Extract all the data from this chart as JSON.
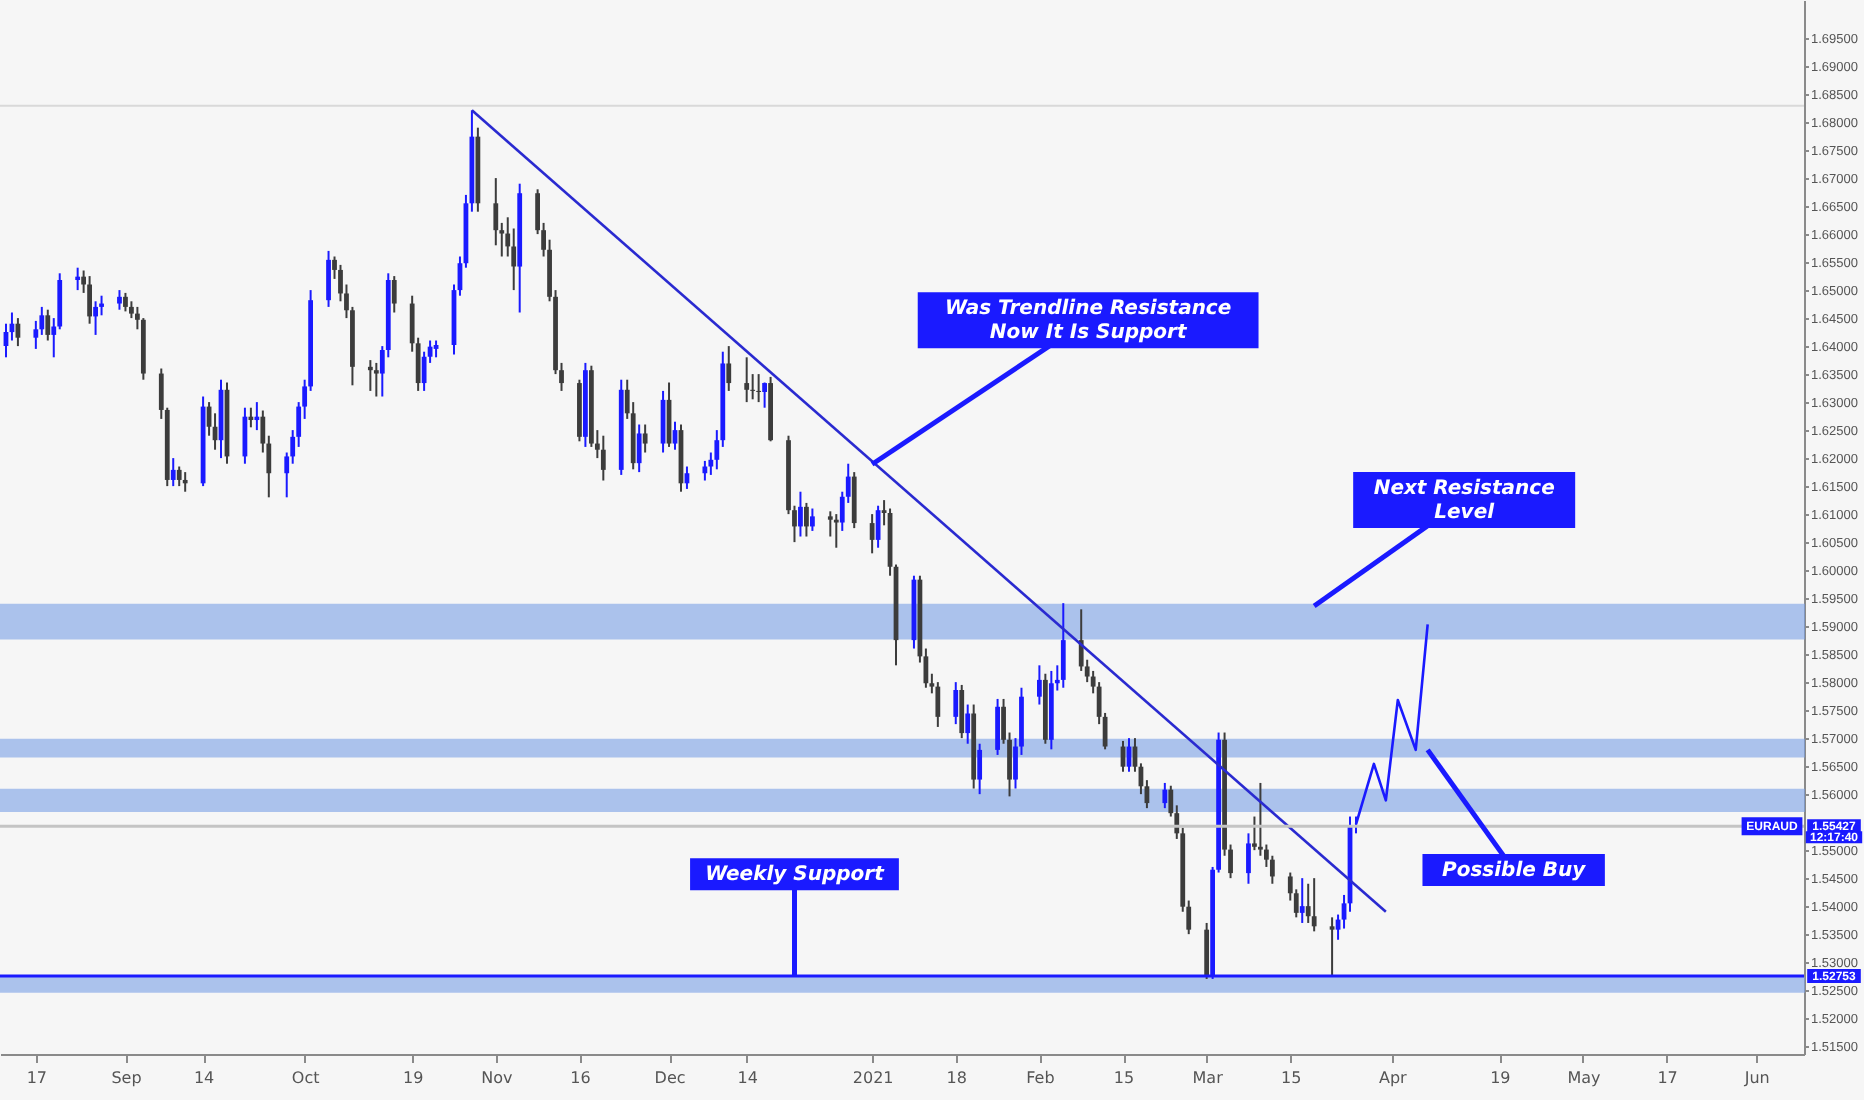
{
  "chart_data": {
    "type": "candlestick",
    "x": [
      "2020-08-12",
      "2020-08-13",
      "2020-08-14",
      "2020-08-17",
      "2020-08-18",
      "2020-08-19",
      "2020-08-20",
      "2020-08-21",
      "2020-08-24",
      "2020-08-25",
      "2020-08-26",
      "2020-08-27",
      "2020-08-28",
      "2020-08-31",
      "2020-09-01",
      "2020-09-02",
      "2020-09-03",
      "2020-09-04",
      "2020-09-07",
      "2020-09-08",
      "2020-09-09",
      "2020-09-10",
      "2020-09-11",
      "2020-09-14",
      "2020-09-15",
      "2020-09-16",
      "2020-09-17",
      "2020-09-18",
      "2020-09-21",
      "2020-09-22",
      "2020-09-23",
      "2020-09-24",
      "2020-09-25",
      "2020-09-28",
      "2020-09-29",
      "2020-09-30",
      "2020-10-01",
      "2020-10-02",
      "2020-10-05",
      "2020-10-06",
      "2020-10-07",
      "2020-10-08",
      "2020-10-09",
      "2020-10-12",
      "2020-10-13",
      "2020-10-14",
      "2020-10-15",
      "2020-10-16",
      "2020-10-19",
      "2020-10-20",
      "2020-10-21",
      "2020-10-22",
      "2020-10-23",
      "2020-10-26",
      "2020-10-27",
      "2020-10-28",
      "2020-10-29",
      "2020-10-30",
      "2020-11-02",
      "2020-11-03",
      "2020-11-04",
      "2020-11-05",
      "2020-11-06",
      "2020-11-09",
      "2020-11-10",
      "2020-11-11",
      "2020-11-12",
      "2020-11-13",
      "2020-11-16",
      "2020-11-17",
      "2020-11-18",
      "2020-11-19",
      "2020-11-20",
      "2020-11-23",
      "2020-11-24",
      "2020-11-25",
      "2020-11-26",
      "2020-11-27",
      "2020-11-30",
      "2020-12-01",
      "2020-12-02",
      "2020-12-03",
      "2020-12-04",
      "2020-12-07",
      "2020-12-08",
      "2020-12-09",
      "2020-12-10",
      "2020-12-11",
      "2020-12-14",
      "2020-12-15",
      "2020-12-16",
      "2020-12-17",
      "2020-12-18",
      "2020-12-21",
      "2020-12-22",
      "2020-12-23",
      "2020-12-24",
      "2020-12-25",
      "2020-12-28",
      "2020-12-29",
      "2020-12-30",
      "2020-12-31",
      "2021-01-01",
      "2021-01-04",
      "2021-01-05",
      "2021-01-06",
      "2021-01-07",
      "2021-01-08",
      "2021-01-11",
      "2021-01-12",
      "2021-01-13",
      "2021-01-14",
      "2021-01-15",
      "2021-01-18",
      "2021-01-19",
      "2021-01-20",
      "2021-01-21",
      "2021-01-22",
      "2021-01-25",
      "2021-01-26",
      "2021-01-27",
      "2021-01-28",
      "2021-01-29",
      "2021-02-01",
      "2021-02-02",
      "2021-02-03",
      "2021-02-04",
      "2021-02-05",
      "2021-02-08",
      "2021-02-09",
      "2021-02-10",
      "2021-02-11",
      "2021-02-12",
      "2021-02-15",
      "2021-02-16",
      "2021-02-17",
      "2021-02-18",
      "2021-02-19",
      "2021-02-22",
      "2021-02-23",
      "2021-02-24",
      "2021-02-25",
      "2021-02-26",
      "2021-03-01",
      "2021-03-02",
      "2021-03-03",
      "2021-03-04",
      "2021-03-05",
      "2021-03-08",
      "2021-03-09",
      "2021-03-10",
      "2021-03-11",
      "2021-03-12",
      "2021-03-15",
      "2021-03-16",
      "2021-03-17",
      "2021-03-18",
      "2021-03-19",
      "2021-03-22",
      "2021-03-23",
      "2021-03-24",
      "2021-03-25",
      "2021-03-26"
    ],
    "ohlc": [
      [
        1.64,
        1.644,
        1.638,
        1.6425
      ],
      [
        1.6425,
        1.646,
        1.641,
        1.644
      ],
      [
        1.644,
        1.645,
        1.64,
        1.6415
      ],
      [
        1.6415,
        1.6445,
        1.6395,
        1.643
      ],
      [
        1.643,
        1.647,
        1.642,
        1.6455
      ],
      [
        1.6455,
        1.6465,
        1.641,
        1.642
      ],
      [
        1.642,
        1.645,
        1.638,
        1.6435
      ],
      [
        1.6435,
        1.653,
        1.643,
        1.6518
      ],
      [
        1.6518,
        1.654,
        1.65,
        1.6524
      ],
      [
        1.6524,
        1.6535,
        1.6495,
        1.651
      ],
      [
        1.651,
        1.6525,
        1.644,
        1.6453
      ],
      [
        1.6453,
        1.648,
        1.642,
        1.647
      ],
      [
        1.647,
        1.649,
        1.6455,
        1.6476
      ],
      [
        1.6476,
        1.65,
        1.6465,
        1.6488
      ],
      [
        1.6488,
        1.6495,
        1.6462,
        1.647
      ],
      [
        1.647,
        1.648,
        1.645,
        1.6458
      ],
      [
        1.6458,
        1.647,
        1.643,
        1.6447
      ],
      [
        1.6447,
        1.645,
        1.634,
        1.6351
      ],
      [
        1.6351,
        1.636,
        1.627,
        1.6286
      ],
      [
        1.6286,
        1.629,
        1.615,
        1.6161
      ],
      [
        1.6161,
        1.62,
        1.615,
        1.6179
      ],
      [
        1.6179,
        1.6185,
        1.615,
        1.6161
      ],
      [
        1.6161,
        1.6175,
        1.614,
        1.6155
      ],
      [
        1.6155,
        1.631,
        1.615,
        1.6292
      ],
      [
        1.6292,
        1.63,
        1.624,
        1.6256
      ],
      [
        1.6256,
        1.628,
        1.6215,
        1.6232
      ],
      [
        1.6232,
        1.634,
        1.62,
        1.6322
      ],
      [
        1.6322,
        1.6335,
        1.619,
        1.6203
      ],
      [
        1.6203,
        1.629,
        1.619,
        1.6274
      ],
      [
        1.6274,
        1.629,
        1.6255,
        1.6268
      ],
      [
        1.6268,
        1.63,
        1.625,
        1.6274
      ],
      [
        1.6274,
        1.6285,
        1.621,
        1.6226
      ],
      [
        1.6226,
        1.624,
        1.613,
        1.6173
      ],
      [
        1.6173,
        1.621,
        1.613,
        1.6203
      ],
      [
        1.6203,
        1.625,
        1.619,
        1.6238
      ],
      [
        1.6238,
        1.63,
        1.622,
        1.6292
      ],
      [
        1.6292,
        1.634,
        1.627,
        1.6328
      ],
      [
        1.6328,
        1.65,
        1.632,
        1.6482
      ],
      [
        1.6482,
        1.657,
        1.647,
        1.6554
      ],
      [
        1.6554,
        1.656,
        1.652,
        1.6536
      ],
      [
        1.6536,
        1.6545,
        1.648,
        1.6494
      ],
      [
        1.6494,
        1.651,
        1.645,
        1.6464
      ],
      [
        1.6464,
        1.647,
        1.633,
        1.6363
      ],
      [
        1.6363,
        1.6375,
        1.632,
        1.6357
      ],
      [
        1.6357,
        1.637,
        1.631,
        1.6351
      ],
      [
        1.6351,
        1.64,
        1.631,
        1.6393
      ],
      [
        1.6393,
        1.653,
        1.638,
        1.6518
      ],
      [
        1.6518,
        1.6525,
        1.646,
        1.6476
      ],
      [
        1.6476,
        1.649,
        1.639,
        1.6405
      ],
      [
        1.6405,
        1.6415,
        1.632,
        1.6334
      ],
      [
        1.6334,
        1.639,
        1.632,
        1.6381
      ],
      [
        1.6381,
        1.641,
        1.637,
        1.6399
      ],
      [
        1.6395,
        1.641,
        1.638,
        1.6402
      ],
      [
        1.6402,
        1.651,
        1.6385,
        1.65
      ],
      [
        1.65,
        1.656,
        1.649,
        1.6548
      ],
      [
        1.6548,
        1.667,
        1.654,
        1.6655
      ],
      [
        1.6655,
        1.6821,
        1.664,
        1.6774
      ],
      [
        1.6774,
        1.679,
        1.664,
        1.6655
      ],
      [
        1.6655,
        1.67,
        1.658,
        1.6607
      ],
      [
        1.6607,
        1.662,
        1.656,
        1.6601
      ],
      [
        1.6601,
        1.663,
        1.656,
        1.6578
      ],
      [
        1.6578,
        1.661,
        1.65,
        1.6542
      ],
      [
        1.6542,
        1.669,
        1.646,
        1.6673
      ],
      [
        1.6673,
        1.668,
        1.66,
        1.6607
      ],
      [
        1.6607,
        1.662,
        1.656,
        1.6572
      ],
      [
        1.6572,
        1.659,
        1.648,
        1.6488
      ],
      [
        1.6488,
        1.65,
        1.635,
        1.6357
      ],
      [
        1.6357,
        1.637,
        1.632,
        1.6334
      ],
      [
        1.6334,
        1.634,
        1.623,
        1.6238
      ],
      [
        1.6238,
        1.637,
        1.622,
        1.6357
      ],
      [
        1.6357,
        1.6365,
        1.622,
        1.6226
      ],
      [
        1.6226,
        1.625,
        1.62,
        1.6215
      ],
      [
        1.6215,
        1.624,
        1.616,
        1.6179
      ],
      [
        1.6179,
        1.634,
        1.617,
        1.6322
      ],
      [
        1.6322,
        1.634,
        1.627,
        1.628
      ],
      [
        1.628,
        1.63,
        1.618,
        1.6191
      ],
      [
        1.6191,
        1.626,
        1.6175,
        1.6244
      ],
      [
        1.6244,
        1.626,
        1.621,
        1.6226
      ],
      [
        1.6226,
        1.632,
        1.621,
        1.6304
      ],
      [
        1.6304,
        1.6335,
        1.622,
        1.6226
      ],
      [
        1.6226,
        1.6265,
        1.6215,
        1.625
      ],
      [
        1.625,
        1.626,
        1.614,
        1.6155
      ],
      [
        1.6155,
        1.6185,
        1.6145,
        1.6173
      ],
      [
        1.6173,
        1.6195,
        1.616,
        1.6185
      ],
      [
        1.6185,
        1.621,
        1.617,
        1.6197
      ],
      [
        1.6197,
        1.625,
        1.618,
        1.6232
      ],
      [
        1.6232,
        1.639,
        1.622,
        1.6369
      ],
      [
        1.6369,
        1.64,
        1.632,
        1.6334
      ],
      [
        1.6334,
        1.638,
        1.63,
        1.6322
      ],
      [
        1.6322,
        1.635,
        1.6305,
        1.632
      ],
      [
        1.632,
        1.635,
        1.63,
        1.6318
      ],
      [
        1.6318,
        1.6335,
        1.629,
        1.6334
      ],
      [
        1.6334,
        1.6345,
        1.623,
        1.6232
      ],
      [
        1.6232,
        1.624,
        1.61,
        1.6107
      ],
      [
        1.6107,
        1.6115,
        1.605,
        1.6078
      ],
      [
        1.6078,
        1.614,
        1.606,
        1.6113
      ],
      [
        1.6113,
        1.612,
        1.606,
        1.6078
      ],
      [
        1.6078,
        1.611,
        1.607,
        1.6096
      ],
      [
        1.6096,
        1.6105,
        1.606,
        1.609
      ],
      [
        1.609,
        1.61,
        1.604,
        1.6085
      ],
      [
        1.6085,
        1.614,
        1.607,
        1.6131
      ],
      [
        1.6131,
        1.619,
        1.612,
        1.6167
      ],
      [
        1.6167,
        1.6175,
        1.6075,
        1.6084
      ],
      [
        1.6084,
        1.61,
        1.603,
        1.6054
      ],
      [
        1.6054,
        1.6115,
        1.604,
        1.6107
      ],
      [
        1.6107,
        1.6125,
        1.608,
        1.6102
      ],
      [
        1.6102,
        1.611,
        1.599,
        1.6006
      ],
      [
        1.6006,
        1.601,
        1.583,
        1.5875
      ],
      [
        1.5875,
        1.599,
        1.586,
        1.5983
      ],
      [
        1.5983,
        1.599,
        1.5835,
        1.5846
      ],
      [
        1.5846,
        1.586,
        1.579,
        1.5798
      ],
      [
        1.5798,
        1.5815,
        1.578,
        1.5792
      ],
      [
        1.5792,
        1.58,
        1.572,
        1.5738
      ],
      [
        1.5738,
        1.58,
        1.5725,
        1.5786
      ],
      [
        1.5786,
        1.5795,
        1.57,
        1.5709
      ],
      [
        1.5709,
        1.576,
        1.569,
        1.5744
      ],
      [
        1.5744,
        1.576,
        1.561,
        1.5626
      ],
      [
        1.5626,
        1.569,
        1.56,
        1.5679
      ],
      [
        1.5679,
        1.577,
        1.567,
        1.5756
      ],
      [
        1.5756,
        1.577,
        1.569,
        1.5697
      ],
      [
        1.5697,
        1.571,
        1.5596,
        1.5626
      ],
      [
        1.5626,
        1.57,
        1.561,
        1.5685
      ],
      [
        1.5685,
        1.579,
        1.567,
        1.5774
      ],
      [
        1.5774,
        1.583,
        1.576,
        1.5804
      ],
      [
        1.5804,
        1.5815,
        1.569,
        1.5697
      ],
      [
        1.5697,
        1.582,
        1.568,
        1.5798
      ],
      [
        1.5798,
        1.583,
        1.5785,
        1.5804
      ],
      [
        1.5804,
        1.5941,
        1.579,
        1.5875
      ],
      [
        1.5875,
        1.593,
        1.582,
        1.5828
      ],
      [
        1.5828,
        1.584,
        1.58,
        1.581
      ],
      [
        1.581,
        1.582,
        1.578,
        1.5792
      ],
      [
        1.5792,
        1.58,
        1.5725,
        1.5738
      ],
      [
        1.5738,
        1.5745,
        1.568,
        1.5685
      ],
      [
        1.5685,
        1.5695,
        1.564,
        1.5649
      ],
      [
        1.5649,
        1.57,
        1.564,
        1.5685
      ],
      [
        1.5685,
        1.57,
        1.564,
        1.5649
      ],
      [
        1.5649,
        1.5655,
        1.56,
        1.5614
      ],
      [
        1.5614,
        1.5625,
        1.5575,
        1.5584
      ],
      [
        1.5584,
        1.562,
        1.5575,
        1.5608
      ],
      [
        1.5608,
        1.5615,
        1.556,
        1.5566
      ],
      [
        1.5566,
        1.558,
        1.552,
        1.553
      ],
      [
        1.553,
        1.554,
        1.539,
        1.5399
      ],
      [
        1.5399,
        1.541,
        1.535,
        1.5358
      ],
      [
        1.5358,
        1.537,
        1.527,
        1.5274
      ],
      [
        1.5274,
        1.547,
        1.527,
        1.5465
      ],
      [
        1.5465,
        1.571,
        1.546,
        1.5697
      ],
      [
        1.5697,
        1.571,
        1.549,
        1.5501
      ],
      [
        1.5501,
        1.551,
        1.545,
        1.5459
      ],
      [
        1.5459,
        1.553,
        1.544,
        1.5512
      ],
      [
        1.5512,
        1.556,
        1.55,
        1.5506
      ],
      [
        1.5506,
        1.562,
        1.549,
        1.5501
      ],
      [
        1.5501,
        1.551,
        1.547,
        1.5483
      ],
      [
        1.5483,
        1.549,
        1.544,
        1.5453
      ],
      [
        1.5453,
        1.546,
        1.541,
        1.5423
      ],
      [
        1.5423,
        1.543,
        1.538,
        1.5388
      ],
      [
        1.5388,
        1.545,
        1.537,
        1.54
      ],
      [
        1.54,
        1.544,
        1.537,
        1.5382
      ],
      [
        1.5382,
        1.545,
        1.5355,
        1.5364
      ],
      [
        1.5364,
        1.538,
        1.5274,
        1.5358
      ],
      [
        1.5358,
        1.5385,
        1.534,
        1.5376
      ],
      [
        1.5376,
        1.542,
        1.536,
        1.5405
      ],
      [
        1.5405,
        1.556,
        1.539,
        1.5542
      ],
      [
        1.5542,
        1.556,
        1.553,
        1.5543
      ]
    ],
    "colors": [
      "#1a1aff",
      "#1a1aff",
      "#3c3c3c",
      "#1a1aff",
      "#1a1aff",
      "#3c3c3c",
      "#1a1aff",
      "#1a1aff",
      "#1a1aff",
      "#3c3c3c",
      "#3c3c3c",
      "#1a1aff",
      "#1a1aff",
      "#1a1aff",
      "#3c3c3c",
      "#3c3c3c",
      "#3c3c3c",
      "#3c3c3c",
      "#3c3c3c",
      "#3c3c3c",
      "#1a1aff",
      "#3c3c3c",
      "#3c3c3c",
      "#1a1aff",
      "#3c3c3c",
      "#3c3c3c",
      "#1a1aff",
      "#3c3c3c",
      "#1a1aff",
      "#3c3c3c",
      "#1a1aff",
      "#3c3c3c",
      "#3c3c3c",
      "#1a1aff",
      "#1a1aff",
      "#1a1aff",
      "#1a1aff",
      "#1a1aff",
      "#1a1aff",
      "#3c3c3c",
      "#3c3c3c",
      "#3c3c3c",
      "#3c3c3c",
      "#3c3c3c",
      "#3c3c3c",
      "#1a1aff",
      "#1a1aff",
      "#3c3c3c",
      "#3c3c3c",
      "#3c3c3c",
      "#1a1aff",
      "#1a1aff",
      "#1a1aff",
      "#1a1aff",
      "#1a1aff",
      "#1a1aff",
      "#1a1aff",
      "#3c3c3c",
      "#3c3c3c",
      "#3c3c3c",
      "#3c3c3c",
      "#3c3c3c",
      "#1a1aff",
      "#3c3c3c",
      "#3c3c3c",
      "#3c3c3c",
      "#3c3c3c",
      "#3c3c3c",
      "#3c3c3c",
      "#1a1aff",
      "#3c3c3c",
      "#3c3c3c",
      "#3c3c3c",
      "#1a1aff",
      "#3c3c3c",
      "#3c3c3c",
      "#1a1aff",
      "#3c3c3c",
      "#1a1aff",
      "#3c3c3c",
      "#1a1aff",
      "#3c3c3c",
      "#1a1aff",
      "#1a1aff",
      "#1a1aff",
      "#1a1aff",
      "#1a1aff",
      "#3c3c3c",
      "#3c3c3c",
      "#3c3c3c",
      "#3c3c3c",
      "#1a1aff",
      "#3c3c3c",
      "#3c3c3c",
      "#3c3c3c",
      "#1a1aff",
      "#3c3c3c",
      "#1a1aff",
      "#3c3c3c",
      "#3c3c3c",
      "#1a1aff",
      "#1a1aff",
      "#3c3c3c",
      "#3c3c3c",
      "#1a1aff",
      "#3c3c3c",
      "#3c3c3c",
      "#3c3c3c",
      "#1a1aff",
      "#3c3c3c",
      "#3c3c3c",
      "#3c3c3c",
      "#3c3c3c",
      "#1a1aff",
      "#3c3c3c",
      "#1a1aff",
      "#3c3c3c",
      "#1a1aff",
      "#1a1aff",
      "#3c3c3c",
      "#3c3c3c",
      "#1a1aff",
      "#1a1aff",
      "#1a1aff",
      "#3c3c3c",
      "#1a1aff",
      "#1a1aff",
      "#1a1aff",
      "#3c3c3c",
      "#3c3c3c",
      "#3c3c3c",
      "#3c3c3c",
      "#3c3c3c",
      "#3c3c3c",
      "#1a1aff",
      "#3c3c3c",
      "#3c3c3c",
      "#3c3c3c",
      "#1a1aff",
      "#3c3c3c",
      "#3c3c3c",
      "#3c3c3c",
      "#3c3c3c",
      "#3c3c3c",
      "#1a1aff",
      "#1a1aff",
      "#3c3c3c",
      "#3c3c3c",
      "#1a1aff",
      "#3c3c3c",
      "#3c3c3c",
      "#3c3c3c",
      "#3c3c3c",
      "#3c3c3c",
      "#3c3c3c",
      "#1a1aff",
      "#3c3c3c",
      "#3c3c3c",
      "#3c3c3c",
      "#1a1aff",
      "#1a1aff",
      "#1a1aff",
      "#1a1aff"
    ],
    "xlim": [
      "2020-08-11",
      "2021-06-09"
    ],
    "xticks": [
      {
        "value": "2020-08-17",
        "label": "17"
      },
      {
        "value": "2020-09-01",
        "label": "Sep"
      },
      {
        "value": "2020-09-14",
        "label": "14"
      },
      {
        "value": "2020-10-01",
        "label": "Oct"
      },
      {
        "value": "2020-10-19",
        "label": "19"
      },
      {
        "value": "2020-11-02",
        "label": "Nov"
      },
      {
        "value": "2020-11-16",
        "label": "16"
      },
      {
        "value": "2020-12-01",
        "label": "Dec"
      },
      {
        "value": "2020-12-14",
        "label": "14"
      },
      {
        "value": "2021-01-04",
        "label": "2021"
      },
      {
        "value": "2021-01-18",
        "label": "18"
      },
      {
        "value": "2021-02-01",
        "label": "Feb"
      },
      {
        "value": "2021-02-15",
        "label": "15"
      },
      {
        "value": "2021-03-01",
        "label": "Mar"
      },
      {
        "value": "2021-03-15",
        "label": "15"
      },
      {
        "value": "2021-04-01",
        "label": "Apr"
      },
      {
        "value": "2021-04-19",
        "label": "19"
      },
      {
        "value": "2021-05-03",
        "label": "May"
      },
      {
        "value": "2021-05-17",
        "label": "17"
      },
      {
        "value": "2021-06-01",
        "label": "Jun"
      }
    ],
    "ylim": [
      1.5136,
      1.7018
    ],
    "yticks": [
      {
        "value": 1.515,
        "label": "1.51500"
      },
      {
        "value": 1.52,
        "label": "1.52000"
      },
      {
        "value": 1.525,
        "label": "1.52500"
      },
      {
        "value": 1.53,
        "label": "1.53000"
      },
      {
        "value": 1.535,
        "label": "1.53500"
      },
      {
        "value": 1.54,
        "label": "1.54000"
      },
      {
        "value": 1.545,
        "label": "1.54500"
      },
      {
        "value": 1.55,
        "label": "1.55000"
      },
      {
        "value": 1.56,
        "label": "1.56000"
      },
      {
        "value": 1.565,
        "label": "1.56500"
      },
      {
        "value": 1.57,
        "label": "1.57000"
      },
      {
        "value": 1.575,
        "label": "1.57500"
      },
      {
        "value": 1.58,
        "label": "1.58000"
      },
      {
        "value": 1.585,
        "label": "1.58500"
      },
      {
        "value": 1.59,
        "label": "1.59000"
      },
      {
        "value": 1.595,
        "label": "1.59500"
      },
      {
        "value": 1.6,
        "label": "1.60000"
      },
      {
        "value": 1.605,
        "label": "1.60500"
      },
      {
        "value": 1.61,
        "label": "1.61000"
      },
      {
        "value": 1.615,
        "label": "1.61500"
      },
      {
        "value": 1.62,
        "label": "1.62000"
      },
      {
        "value": 1.625,
        "label": "1.62500"
      },
      {
        "value": 1.63,
        "label": "1.63000"
      },
      {
        "value": 1.635,
        "label": "1.63500"
      },
      {
        "value": 1.64,
        "label": "1.64000"
      },
      {
        "value": 1.645,
        "label": "1.64500"
      },
      {
        "value": 1.65,
        "label": "1.65000"
      },
      {
        "value": 1.655,
        "label": "1.65500"
      },
      {
        "value": 1.66,
        "label": "1.66000"
      },
      {
        "value": 1.665,
        "label": "1.66500"
      },
      {
        "value": 1.67,
        "label": "1.67000"
      },
      {
        "value": 1.675,
        "label": "1.67500"
      },
      {
        "value": 1.68,
        "label": "1.68000"
      },
      {
        "value": 1.685,
        "label": "1.68500"
      },
      {
        "value": 1.69,
        "label": "1.69000"
      },
      {
        "value": 1.695,
        "label": "1.69500"
      }
    ],
    "series": [
      {
        "type": "line",
        "color": "#2a2ad0",
        "x": [
          "2020-10-29",
          "2021-03-31"
        ],
        "values": [
          1.6821,
          1.539
        ]
      },
      {
        "type": "line",
        "color": "#1a1aff",
        "x": [
          "2021-03-26",
          "2021-03-29",
          "2021-03-31",
          "2021-04-02",
          "2021-04-05",
          "2021-04-07"
        ],
        "values": [
          1.5546,
          1.5654,
          1.5589,
          1.5768,
          1.5679,
          1.5903
        ]
      }
    ],
    "ref_lines": [
      {
        "axis": "y",
        "value": 1.6829,
        "label": null,
        "color": "#d9d9d9"
      },
      {
        "axis": "y",
        "value": 1.55427,
        "label": "1.55427",
        "color": "#c4c4c4"
      },
      {
        "axis": "y",
        "value": 1.52753,
        "label": "1.52753",
        "color": "#1a1aff"
      }
    ],
    "bands": [
      {
        "axis": "y",
        "from": 1.5878,
        "to": 1.5938,
        "color": "#7aa0e6"
      },
      {
        "axis": "y",
        "from": 1.5667,
        "to": 1.5697,
        "color": "#7aa0e6"
      },
      {
        "axis": "y",
        "from": 1.557,
        "to": 1.5608,
        "color": "#7aa0e6"
      },
      {
        "axis": "y",
        "from": 1.5247,
        "to": 1.5272,
        "color": "#7aa0e6"
      }
    ],
    "annotations": [
      {
        "text": "Was Trendline Resistance\nNow It Is Support",
        "x": "2021-01-04",
        "y": 1.6189
      },
      {
        "text": "Next Resistance\nLevel",
        "x": "2021-03-19",
        "y": 1.5936
      },
      {
        "text": "Possible Buy",
        "x": "2021-04-07",
        "y": 1.5679
      },
      {
        "text": "Weekly Support",
        "x": "2020-12-22",
        "y": 1.5275
      },
      {
        "text": "EURAUD",
        "y": 1.55427
      },
      "12:17:40"
    ]
  }
}
